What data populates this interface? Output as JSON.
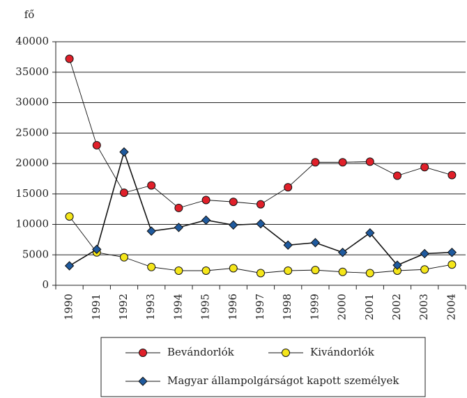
{
  "chart_data": {
    "type": "line",
    "y_label": "fő",
    "categories": [
      "1990",
      "1991",
      "1992",
      "1993",
      "1994",
      "1995",
      "1996",
      "1997",
      "1998",
      "1999",
      "2000",
      "2001",
      "2002",
      "2003",
      "2004"
    ],
    "series": [
      {
        "name": "Bevándorlók",
        "color": "#e0202a",
        "marker": "circle",
        "values": [
          37200,
          23000,
          15200,
          16400,
          12700,
          14000,
          13700,
          13300,
          16100,
          20200,
          20200,
          20300,
          18000,
          19400,
          18100
        ]
      },
      {
        "name": "Kivándorlók",
        "color": "#f5e61a",
        "marker": "circle",
        "values": [
          11300,
          5400,
          4600,
          3000,
          2400,
          2400,
          2800,
          2000,
          2400,
          2500,
          2200,
          2000,
          2400,
          2600,
          3400
        ]
      },
      {
        "name": "Magyar állampolgárságot kapott személyek",
        "color": "#1f5a9e",
        "marker": "diamond",
        "values": [
          3200,
          5900,
          21900,
          8900,
          9500,
          10700,
          9900,
          10100,
          6600,
          7000,
          5400,
          8600,
          3300,
          5200,
          5400
        ]
      }
    ],
    "ylim": [
      0,
      40000
    ],
    "yticks": [
      0,
      5000,
      10000,
      15000,
      20000,
      25000,
      30000,
      35000,
      40000
    ],
    "grid": true
  }
}
